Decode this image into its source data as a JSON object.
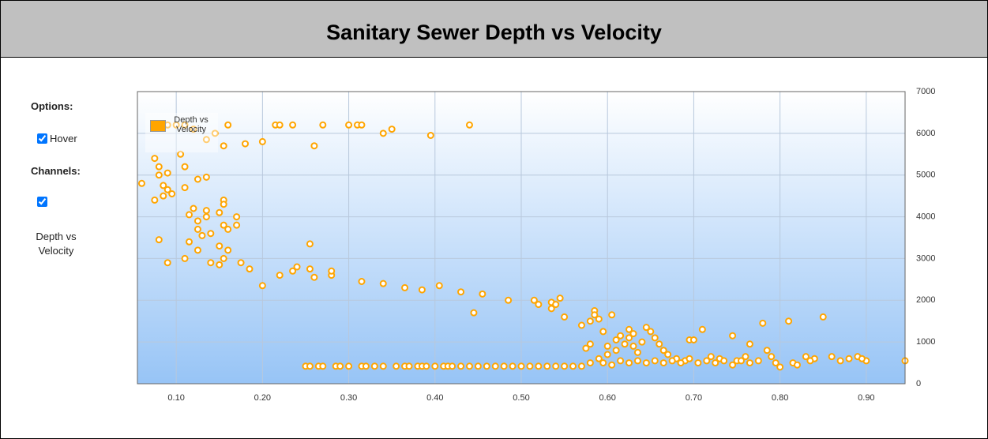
{
  "header": {
    "title": "Sanitary Sewer Depth vs Velocity"
  },
  "sidebar": {
    "options_label": "Options:",
    "hover_label": "Hover",
    "channels_label": "Channels:",
    "channels": [
      "Depth vs Velocity"
    ]
  },
  "chart_data": {
    "type": "scatter",
    "x": [
      0.09,
      0.1,
      0.11,
      0.12,
      0.16,
      0.215,
      0.22,
      0.235,
      0.27,
      0.3,
      0.31,
      0.315,
      0.35,
      0.34,
      0.395,
      0.44,
      0.145,
      0.155,
      0.18,
      0.2,
      0.26,
      0.135,
      0.06,
      0.075,
      0.075,
      0.08,
      0.08,
      0.085,
      0.085,
      0.09,
      0.095,
      0.09,
      0.08,
      0.09,
      0.11,
      0.11,
      0.11,
      0.105,
      0.125,
      0.135,
      0.115,
      0.12,
      0.125,
      0.125,
      0.13,
      0.125,
      0.135,
      0.135,
      0.14,
      0.115,
      0.14,
      0.15,
      0.15,
      0.155,
      0.16,
      0.155,
      0.155,
      0.15,
      0.16,
      0.155,
      0.17,
      0.17,
      0.175,
      0.185,
      0.2,
      0.22,
      0.235,
      0.24,
      0.255,
      0.255,
      0.26,
      0.28,
      0.28,
      0.315,
      0.34,
      0.365,
      0.385,
      0.405,
      0.43,
      0.445,
      0.455,
      0.485,
      0.515,
      0.52,
      0.535,
      0.535,
      0.54,
      0.545,
      0.55,
      0.57,
      0.58,
      0.585,
      0.585,
      0.59,
      0.605,
      0.595,
      0.58,
      0.575,
      0.25,
      0.255,
      0.265,
      0.27,
      0.285,
      0.29,
      0.3,
      0.315,
      0.32,
      0.33,
      0.34,
      0.355,
      0.365,
      0.37,
      0.38,
      0.385,
      0.39,
      0.4,
      0.41,
      0.415,
      0.42,
      0.43,
      0.44,
      0.45,
      0.46,
      0.47,
      0.48,
      0.49,
      0.5,
      0.51,
      0.52,
      0.53,
      0.54,
      0.55,
      0.56,
      0.57,
      0.58,
      0.59,
      0.6,
      0.6,
      0.61,
      0.61,
      0.615,
      0.62,
      0.625,
      0.625,
      0.63,
      0.63,
      0.635,
      0.64,
      0.645,
      0.65,
      0.655,
      0.66,
      0.665,
      0.67,
      0.68,
      0.69,
      0.695,
      0.7,
      0.71,
      0.72,
      0.73,
      0.745,
      0.75,
      0.76,
      0.765,
      0.78,
      0.785,
      0.79,
      0.8,
      0.81,
      0.815,
      0.83,
      0.84,
      0.85,
      0.86,
      0.88,
      0.89,
      0.9,
      0.945,
      0.595,
      0.605,
      0.615,
      0.625,
      0.635,
      0.645,
      0.655,
      0.665,
      0.675,
      0.685,
      0.695,
      0.705,
      0.715,
      0.725,
      0.735,
      0.745,
      0.755,
      0.765,
      0.775,
      0.795,
      0.82,
      0.835,
      0.87,
      0.895
    ],
    "series": [
      {
        "name": "Depth vs Velocity",
        "color": "#ffa500",
        "values": [
          6200,
          6200,
          6200,
          6100,
          6200,
          6200,
          6200,
          6200,
          6200,
          6200,
          6200,
          6200,
          6100,
          6000,
          5950,
          6200,
          6000,
          5700,
          5750,
          5800,
          5700,
          5850,
          4800,
          4400,
          5400,
          5200,
          5000,
          4500,
          4750,
          4650,
          4550,
          5050,
          3450,
          2900,
          3000,
          4700,
          5200,
          5500,
          4900,
          4950,
          4050,
          4200,
          3900,
          3700,
          3550,
          3200,
          4000,
          4150,
          3600,
          3400,
          2900,
          2850,
          3300,
          3000,
          3200,
          4400,
          4300,
          4100,
          3700,
          3800,
          4000,
          3800,
          2900,
          2750,
          2350,
          2600,
          2700,
          2800,
          3350,
          2750,
          2550,
          2600,
          2700,
          2450,
          2400,
          2300,
          2250,
          2350,
          2200,
          1700,
          2150,
          2000,
          2000,
          1900,
          1800,
          1950,
          1900,
          2050,
          1600,
          1400,
          1500,
          1750,
          1650,
          1550,
          1650,
          1250,
          950,
          850,
          420,
          420,
          420,
          420,
          420,
          420,
          420,
          420,
          420,
          420,
          420,
          420,
          420,
          420,
          420,
          420,
          420,
          420,
          420,
          420,
          420,
          420,
          420,
          420,
          420,
          420,
          420,
          420,
          420,
          420,
          420,
          420,
          420,
          420,
          420,
          420,
          500,
          600,
          700,
          900,
          1050,
          800,
          1150,
          950,
          1100,
          1300,
          1200,
          900,
          750,
          1000,
          1350,
          1250,
          1100,
          950,
          800,
          700,
          600,
          550,
          1050,
          1050,
          1300,
          650,
          600,
          1150,
          550,
          650,
          950,
          1450,
          800,
          650,
          400,
          1500,
          500,
          650,
          600,
          1600,
          650,
          600,
          650,
          550,
          550,
          500,
          450,
          550,
          500,
          550,
          500,
          550,
          500,
          550,
          500,
          600,
          500,
          550,
          500,
          550,
          450,
          550,
          500,
          550,
          500,
          450,
          550,
          550,
          600
        ]
      }
    ],
    "xlim": [
      0.055,
      0.945
    ],
    "ylim": [
      0,
      7000
    ],
    "xticks": [
      {
        "value": 0.1,
        "label": "0.10"
      },
      {
        "value": 0.2,
        "label": "0.20"
      },
      {
        "value": 0.3,
        "label": "0.30"
      },
      {
        "value": 0.4,
        "label": "0.40"
      },
      {
        "value": 0.5,
        "label": "0.50"
      },
      {
        "value": 0.6,
        "label": "0.60"
      },
      {
        "value": 0.7,
        "label": "0.70"
      },
      {
        "value": 0.8,
        "label": "0.80"
      },
      {
        "value": 0.9,
        "label": "0.90"
      }
    ],
    "yticks": [
      0,
      1000,
      2000,
      3000,
      4000,
      5000,
      6000,
      7000
    ],
    "grid": true,
    "legend": "upper left"
  }
}
